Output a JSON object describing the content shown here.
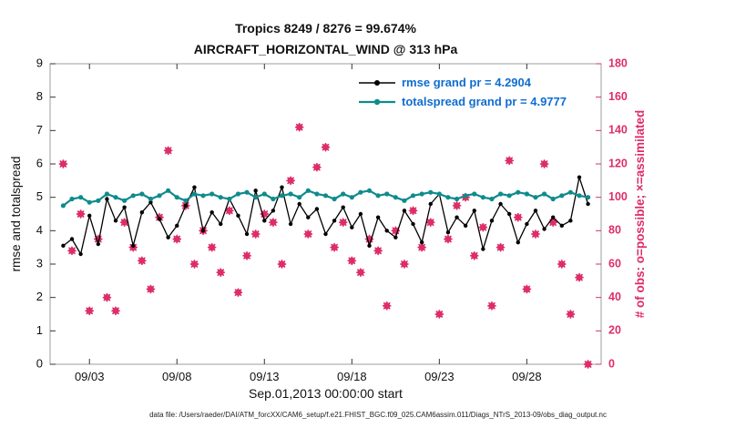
{
  "chart_data": {
    "type": "line+scatter",
    "title_line1": "Tropics 8249 / 8276 = 99.674%",
    "title_line2": "AIRCRAFT_HORIZONTAL_WIND @ 313 hPa",
    "xlabel": "Sep.01,2013 00:00:00 start",
    "ylabel_left": "rmse and totalspread",
    "ylabel_right": "# of obs: o=possible; ×=assimilated",
    "datafile_caption": "data file: /Users/raeder/DAI/ATM_forcXX/CAM6_setup/f.e21.FHIST_BGC.f09_025.CAM6assim.011/Diags_NTrS_2013-09/obs_diag_output.nc",
    "ylim_left": [
      0,
      9
    ],
    "ylim_right": [
      0,
      180
    ],
    "yticks_left": [
      0,
      1,
      2,
      3,
      4,
      5,
      6,
      7,
      8,
      9
    ],
    "yticks_right": [
      0,
      20,
      40,
      60,
      80,
      100,
      120,
      140,
      160,
      180
    ],
    "xlim_days": [
      -0.25,
      31.25
    ],
    "xticks": [
      {
        "day": 2,
        "label": "09/03"
      },
      {
        "day": 7,
        "label": "09/08"
      },
      {
        "day": 12,
        "label": "09/13"
      },
      {
        "day": 17,
        "label": "09/18"
      },
      {
        "day": 22,
        "label": "09/23"
      },
      {
        "day": 27,
        "label": "09/28"
      }
    ],
    "colors": {
      "rmse": "#000000",
      "totalspread": "#0f8b8c",
      "obs": "#dd2e66",
      "legend_text": "#0f6dd0",
      "box": "#9e9e9e",
      "tick": "#333333"
    },
    "x_days": [
      0.5,
      1,
      1.5,
      2,
      2.5,
      3,
      3.5,
      4,
      4.5,
      5,
      5.5,
      6,
      6.5,
      7,
      7.5,
      8,
      8.5,
      9,
      9.5,
      10,
      10.5,
      11,
      11.5,
      12,
      12.5,
      13,
      13.5,
      14,
      14.5,
      15,
      15.5,
      16,
      16.5,
      17,
      17.5,
      18,
      18.5,
      19,
      19.5,
      20,
      20.5,
      21,
      21.5,
      22,
      22.5,
      23,
      23.5,
      24,
      24.5,
      25,
      25.5,
      26,
      26.5,
      27,
      27.5,
      28,
      28.5,
      29,
      29.5,
      30,
      30.5
    ],
    "series": [
      {
        "name": "rmse",
        "legend": "rmse grand pr = 4.2904",
        "values": [
          3.55,
          3.75,
          3.3,
          4.45,
          3.6,
          4.95,
          4.3,
          4.7,
          3.55,
          4.55,
          4.85,
          4.35,
          3.8,
          4.15,
          4.75,
          5.3,
          4.0,
          4.55,
          4.2,
          4.95,
          4.45,
          3.9,
          5.2,
          4.3,
          4.6,
          5.3,
          4.2,
          4.8,
          4.4,
          4.65,
          3.9,
          4.3,
          4.7,
          4.1,
          4.5,
          3.55,
          4.4,
          4.0,
          3.8,
          4.6,
          4.2,
          3.65,
          4.8,
          5.1,
          3.95,
          4.4,
          4.15,
          4.6,
          3.45,
          4.3,
          4.8,
          4.5,
          3.65,
          4.2,
          4.6,
          4.05,
          4.4,
          4.15,
          4.3,
          5.6,
          4.8
        ]
      },
      {
        "name": "totalspread",
        "legend": "totalspread grand pr = 4.9777",
        "values": [
          4.75,
          4.95,
          5.0,
          4.85,
          4.9,
          5.1,
          5.0,
          4.9,
          5.05,
          5.1,
          4.95,
          5.05,
          5.2,
          5.0,
          4.9,
          5.1,
          5.05,
          5.1,
          5.0,
          4.95,
          5.1,
          5.15,
          5.0,
          5.1,
          4.95,
          5.05,
          5.1,
          5.0,
          5.2,
          5.1,
          5.05,
          4.95,
          5.1,
          5.0,
          5.15,
          5.2,
          5.05,
          5.1,
          5.0,
          4.9,
          5.05,
          5.1,
          5.15,
          5.1,
          5.0,
          4.95,
          5.05,
          5.1,
          5.0,
          4.95,
          5.1,
          5.05,
          5.15,
          5.1,
          5.0,
          5.1,
          4.95,
          5.05,
          5.15,
          5.05,
          5.0
        ]
      }
    ],
    "scatter": {
      "name": "obs_assimilated",
      "axis": "right",
      "values": [
        120,
        68,
        90,
        32,
        75,
        40,
        32,
        85,
        70,
        62,
        45,
        88,
        128,
        75,
        95,
        60,
        80,
        70,
        55,
        92,
        43,
        65,
        78,
        90,
        85,
        60,
        110,
        142,
        78,
        118,
        130,
        70,
        85,
        62,
        55,
        75,
        68,
        35,
        80,
        60,
        92,
        70,
        85,
        30,
        75,
        95,
        100,
        65,
        82,
        35,
        70,
        122,
        88,
        45,
        78,
        120,
        85,
        60,
        30,
        52,
        0
      ]
    }
  }
}
